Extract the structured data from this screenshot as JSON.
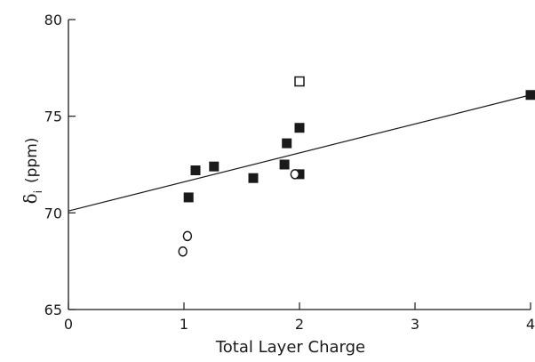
{
  "chart_data": {
    "type": "scatter",
    "title": "",
    "xlabel": "Total Layer Charge",
    "ylabel": {
      "symbol": "δ",
      "subscript": "i",
      "unit": "(ppm)"
    },
    "xlim": [
      0,
      4
    ],
    "ylim": [
      65,
      80
    ],
    "xticks": [
      0,
      1,
      2,
      3,
      4
    ],
    "yticks": [
      65,
      70,
      75,
      80
    ],
    "grid": false,
    "series": [
      {
        "marker": "filled-square",
        "points": [
          {
            "x": 1.04,
            "y": 70.8
          },
          {
            "x": 1.1,
            "y": 72.2
          },
          {
            "x": 1.26,
            "y": 72.4
          },
          {
            "x": 1.6,
            "y": 71.8
          },
          {
            "x": 1.87,
            "y": 72.5
          },
          {
            "x": 1.89,
            "y": 73.6
          },
          {
            "x": 2.0,
            "y": 74.4
          },
          {
            "x": 2.0,
            "y": 72.0
          },
          {
            "x": 4.0,
            "y": 76.1
          }
        ]
      },
      {
        "marker": "open-circle",
        "points": [
          {
            "x": 0.99,
            "y": 68.0
          },
          {
            "x": 1.03,
            "y": 68.8
          },
          {
            "x": 1.96,
            "y": 72.0
          }
        ]
      },
      {
        "marker": "open-square",
        "points": [
          {
            "x": 2.0,
            "y": 76.8
          }
        ]
      }
    ],
    "fit_line": {
      "x": [
        0,
        4
      ],
      "y": [
        70.1,
        76.1
      ]
    }
  }
}
